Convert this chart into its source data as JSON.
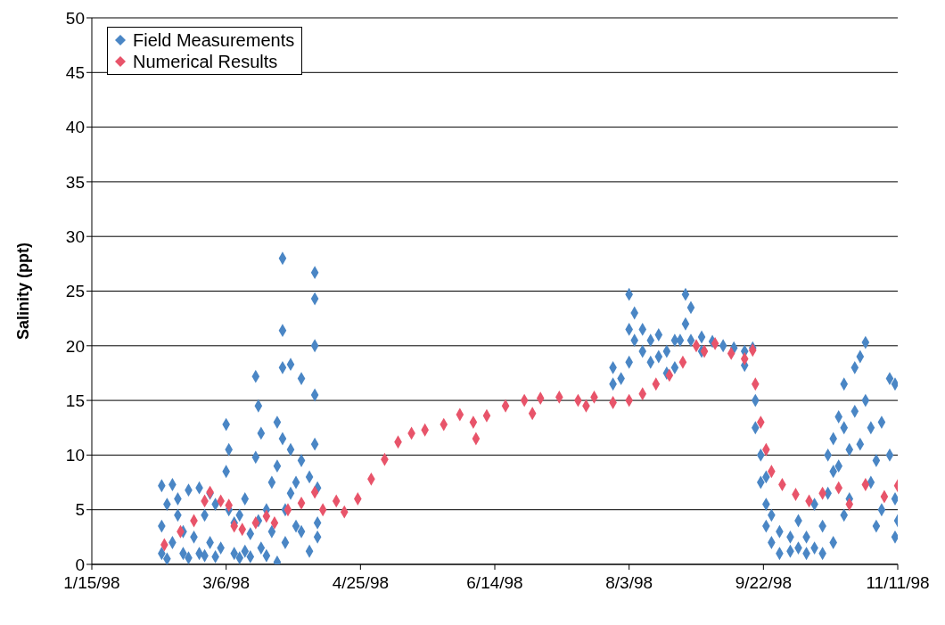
{
  "chart_data": {
    "type": "scatter",
    "ylabel": "Salinity (ppt)",
    "xlim": [
      "1998-01-15",
      "1998-11-11"
    ],
    "xticks": [
      {
        "value": "1998-01-15",
        "label": "1/15/98"
      },
      {
        "value": "1998-03-06",
        "label": "3/6/98"
      },
      {
        "value": "1998-04-25",
        "label": "4/25/98"
      },
      {
        "value": "1998-06-14",
        "label": "6/14/98"
      },
      {
        "value": "1998-08-03",
        "label": "8/3/98"
      },
      {
        "value": "1998-09-22",
        "label": "9/22/98"
      },
      {
        "value": "1998-11-11",
        "label": "11/11/98"
      }
    ],
    "ylim": [
      0,
      50
    ],
    "yticks": [
      0,
      5,
      10,
      15,
      20,
      25,
      30,
      35,
      40,
      45,
      50
    ],
    "grid": "y",
    "legend": "top left",
    "marker": "diamond",
    "series": [
      {
        "name": "Field Measurements",
        "color": "#4a86c5",
        "x": [
          "1998-02-10",
          "1998-02-10",
          "1998-02-10",
          "1998-02-12",
          "1998-02-12",
          "1998-02-14",
          "1998-02-14",
          "1998-02-16",
          "1998-02-16",
          "1998-02-18",
          "1998-02-18",
          "1998-02-20",
          "1998-02-20",
          "1998-02-22",
          "1998-02-24",
          "1998-02-24",
          "1998-02-26",
          "1998-02-26",
          "1998-02-28",
          "1998-02-28",
          "1998-03-02",
          "1998-03-02",
          "1998-03-04",
          "1998-03-06",
          "1998-03-06",
          "1998-03-07",
          "1998-03-07",
          "1998-03-09",
          "1998-03-09",
          "1998-03-11",
          "1998-03-11",
          "1998-03-13",
          "1998-03-13",
          "1998-03-15",
          "1998-03-15",
          "1998-03-17",
          "1998-03-17",
          "1998-03-18",
          "1998-03-18",
          "1998-03-19",
          "1998-03-19",
          "1998-03-21",
          "1998-03-21",
          "1998-03-23",
          "1998-03-23",
          "1998-03-25",
          "1998-03-25",
          "1998-03-25",
          "1998-03-27",
          "1998-03-27",
          "1998-03-27",
          "1998-03-27",
          "1998-03-28",
          "1998-03-28",
          "1998-03-30",
          "1998-03-30",
          "1998-03-30",
          "1998-04-01",
          "1998-04-01",
          "1998-04-03",
          "1998-04-03",
          "1998-04-03",
          "1998-04-06",
          "1998-04-06",
          "1998-04-08",
          "1998-04-08",
          "1998-04-08",
          "1998-04-08",
          "1998-04-08",
          "1998-04-09",
          "1998-04-09",
          "1998-04-09",
          "1998-07-28",
          "1998-07-28",
          "1998-07-31",
          "1998-08-03",
          "1998-08-03",
          "1998-08-03",
          "1998-08-05",
          "1998-08-05",
          "1998-08-08",
          "1998-08-08",
          "1998-08-11",
          "1998-08-11",
          "1998-08-14",
          "1998-08-14",
          "1998-08-17",
          "1998-08-17",
          "1998-08-20",
          "1998-08-20",
          "1998-08-22",
          "1998-08-24",
          "1998-08-24",
          "1998-08-26",
          "1998-08-26",
          "1998-08-30",
          "1998-08-30",
          "1998-09-03",
          "1998-09-07",
          "1998-09-11",
          "1998-09-15",
          "1998-09-15",
          "1998-09-18",
          "1998-09-19",
          "1998-09-19",
          "1998-09-21",
          "1998-09-21",
          "1998-09-23",
          "1998-09-23",
          "1998-09-23",
          "1998-09-25",
          "1998-09-25",
          "1998-09-28",
          "1998-09-28",
          "1998-10-02",
          "1998-10-02",
          "1998-10-05",
          "1998-10-05",
          "1998-10-08",
          "1998-10-08",
          "1998-10-11",
          "1998-10-11",
          "1998-10-14",
          "1998-10-14",
          "1998-10-16",
          "1998-10-16",
          "1998-10-18",
          "1998-10-18",
          "1998-10-18",
          "1998-10-20",
          "1998-10-20",
          "1998-10-22",
          "1998-10-22",
          "1998-10-22",
          "1998-10-24",
          "1998-10-24",
          "1998-10-26",
          "1998-10-26",
          "1998-10-28",
          "1998-10-28",
          "1998-10-30",
          "1998-10-30",
          "1998-11-01",
          "1998-11-01",
          "1998-11-03",
          "1998-11-03",
          "1998-11-05",
          "1998-11-05",
          "1998-11-08",
          "1998-11-08",
          "1998-11-10",
          "1998-11-10",
          "1998-11-10",
          "1998-11-11"
        ],
        "values": [
          1.0,
          3.5,
          7.2,
          0.5,
          5.5,
          2.0,
          7.3,
          4.5,
          6.0,
          1.0,
          3.0,
          0.6,
          6.8,
          2.5,
          1.0,
          7.0,
          0.8,
          4.5,
          6.5,
          2.0,
          0.7,
          5.5,
          1.5,
          8.5,
          12.8,
          5.0,
          10.5,
          1.0,
          3.8,
          0.6,
          4.5,
          1.2,
          6.0,
          0.7,
          2.8,
          9.8,
          17.2,
          14.5,
          4.0,
          1.5,
          12.0,
          0.8,
          5.0,
          3.0,
          7.5,
          0.2,
          9.0,
          13.0,
          28.0,
          21.4,
          18.0,
          11.5,
          5.0,
          2.0,
          18.3,
          10.5,
          6.5,
          7.5,
          3.5,
          9.5,
          17.0,
          3.0,
          8.0,
          1.2,
          26.7,
          24.3,
          20.0,
          15.5,
          11.0,
          3.8,
          7.0,
          2.5,
          16.5,
          18.0,
          17.0,
          24.7,
          21.5,
          18.5,
          23.0,
          20.5,
          21.5,
          19.5,
          20.5,
          18.5,
          19.0,
          21.0,
          17.5,
          19.5,
          18.0,
          20.5,
          20.5,
          24.7,
          22.0,
          23.5,
          20.5,
          20.8,
          19.5,
          20.4,
          20.0,
          19.8,
          18.2,
          19.5,
          19.8,
          15.0,
          12.5,
          10.0,
          7.5,
          5.5,
          3.5,
          8.0,
          2.0,
          4.5,
          1.0,
          3.0,
          2.5,
          1.2,
          4.0,
          1.5,
          1.0,
          2.5,
          5.5,
          1.5,
          3.5,
          1.0,
          10.0,
          6.5,
          8.5,
          2.0,
          11.5,
          13.5,
          9.0,
          12.5,
          16.5,
          4.5,
          6.0,
          10.5,
          14.0,
          18.0,
          19.0,
          11.0,
          20.3,
          15.0,
          12.5,
          7.5,
          3.5,
          9.5,
          13.0,
          5.0,
          17.0,
          10.0,
          2.5,
          16.5,
          6.0,
          4.0
        ]
      },
      {
        "name": "Numerical Results",
        "color": "#e8546a",
        "x": [
          "1998-02-11",
          "1998-02-17",
          "1998-02-22",
          "1998-02-26",
          "1998-02-28",
          "1998-03-04",
          "1998-03-07",
          "1998-03-09",
          "1998-03-12",
          "1998-03-17",
          "1998-03-21",
          "1998-03-24",
          "1998-03-29",
          "1998-04-03",
          "1998-04-08",
          "1998-04-11",
          "1998-04-16",
          "1998-04-19",
          "1998-04-24",
          "1998-04-29",
          "1998-05-04",
          "1998-05-09",
          "1998-05-14",
          "1998-05-19",
          "1998-05-26",
          "1998-06-01",
          "1998-06-06",
          "1998-06-07",
          "1998-06-11",
          "1998-06-18",
          "1998-06-25",
          "1998-06-28",
          "1998-07-01",
          "1998-07-08",
          "1998-07-15",
          "1998-07-18",
          "1998-07-21",
          "1998-07-28",
          "1998-08-03",
          "1998-08-08",
          "1998-08-13",
          "1998-08-18",
          "1998-08-23",
          "1998-08-28",
          "1998-08-31",
          "1998-09-04",
          "1998-09-10",
          "1998-09-15",
          "1998-09-18",
          "1998-09-19",
          "1998-09-21",
          "1998-09-23",
          "1998-09-25",
          "1998-09-29",
          "1998-10-04",
          "1998-10-09",
          "1998-10-14",
          "1998-10-20",
          "1998-10-24",
          "1998-10-30",
          "1998-11-06",
          "1998-11-11"
        ],
        "values": [
          1.8,
          3.0,
          4.0,
          5.8,
          6.6,
          5.8,
          5.4,
          3.5,
          3.2,
          3.8,
          4.4,
          3.8,
          5.0,
          5.6,
          6.6,
          5.0,
          5.8,
          4.8,
          6.0,
          7.8,
          9.6,
          11.2,
          12.0,
          12.3,
          12.8,
          13.7,
          13.0,
          11.5,
          13.6,
          14.5,
          15.0,
          13.8,
          15.2,
          15.3,
          15.0,
          14.5,
          15.3,
          14.8,
          15.0,
          15.6,
          16.5,
          17.3,
          18.5,
          20.0,
          19.5,
          20.2,
          19.3,
          18.8,
          19.6,
          16.5,
          13.0,
          10.5,
          8.5,
          7.3,
          6.4,
          5.8,
          6.5,
          7.0,
          5.5,
          7.3,
          6.2,
          7.2
        ]
      }
    ]
  }
}
